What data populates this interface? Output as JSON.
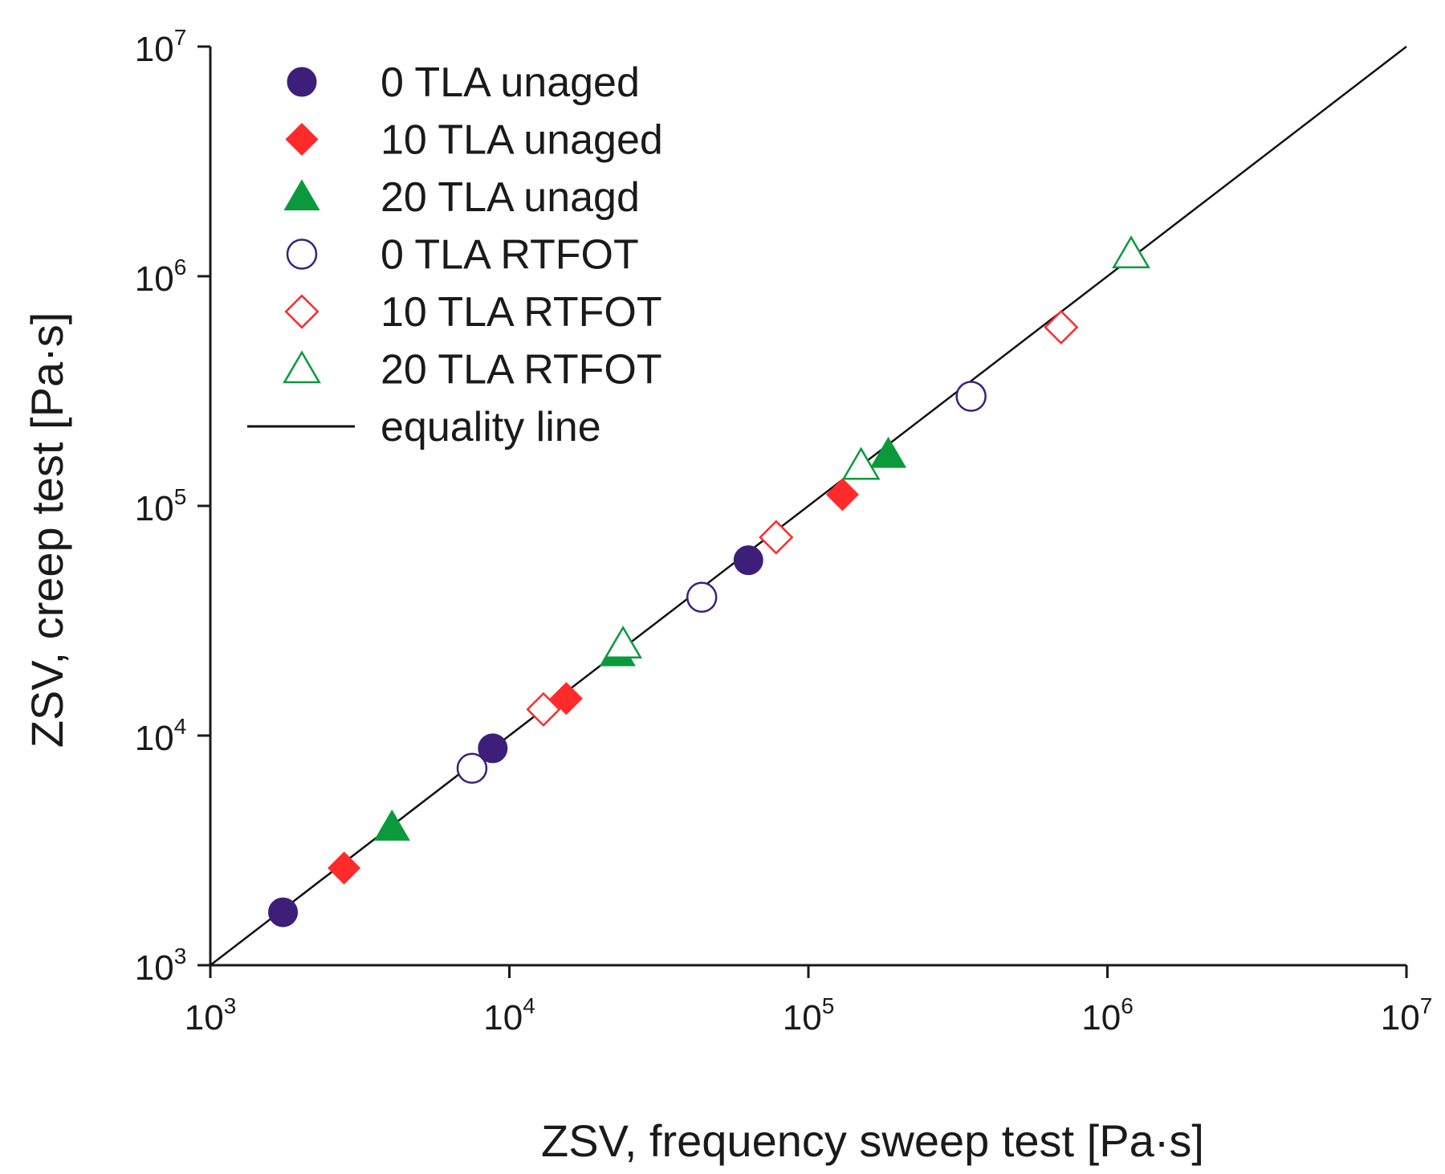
{
  "chart_data": {
    "type": "scatter",
    "title": "",
    "xlabel": "ZSV, frequency sweep test [Pa·s]",
    "ylabel": "ZSV, creep test [Pa·s]",
    "xscale": "log",
    "yscale": "log",
    "xlim": [
      1000,
      10000000
    ],
    "ylim": [
      1000,
      10000000
    ],
    "grid": false,
    "legend_position": "top-left",
    "x_ticks": [
      {
        "base": "10",
        "exp": "3",
        "value": 1000
      },
      {
        "base": "10",
        "exp": "4",
        "value": 10000
      },
      {
        "base": "10",
        "exp": "5",
        "value": 100000
      },
      {
        "base": "10",
        "exp": "6",
        "value": 1000000
      },
      {
        "base": "10",
        "exp": "7",
        "value": 10000000
      }
    ],
    "y_ticks": [
      {
        "base": "10",
        "exp": "3",
        "value": 1000
      },
      {
        "base": "10",
        "exp": "4",
        "value": 10000
      },
      {
        "base": "10",
        "exp": "5",
        "value": 100000
      },
      {
        "base": "10",
        "exp": "6",
        "value": 1000000
      },
      {
        "base": "10",
        "exp": "7",
        "value": 10000000
      }
    ],
    "series": [
      {
        "name": "0 TLA unaged",
        "marker": "circle",
        "filled": true,
        "color": "#3d1f7a",
        "points": [
          [
            1750,
            1700
          ],
          [
            8800,
            8800
          ],
          [
            63000,
            58000
          ]
        ]
      },
      {
        "name": "10 TLA unaged",
        "marker": "diamond",
        "filled": true,
        "color": "#ff2a2a",
        "points": [
          [
            2800,
            2650
          ],
          [
            15500,
            14500
          ],
          [
            130000,
            112000
          ]
        ]
      },
      {
        "name": "20 TLA unagd",
        "marker": "triangle",
        "filled": true,
        "color": "#0a9a3c",
        "points": [
          [
            4050,
            4000
          ],
          [
            23000,
            23000
          ],
          [
            185000,
            168000
          ]
        ]
      },
      {
        "name": "0 TLA RTFOT",
        "marker": "circle",
        "filled": false,
        "color": "#3d1f7a",
        "points": [
          [
            7500,
            7200
          ],
          [
            44000,
            40000
          ],
          [
            350000,
            300000
          ]
        ]
      },
      {
        "name": "10 TLA RTFOT",
        "marker": "diamond",
        "filled": false,
        "color": "#ff2a2a",
        "points": [
          [
            13000,
            13000
          ],
          [
            78000,
            73000
          ],
          [
            700000,
            600000
          ]
        ]
      },
      {
        "name": "20 TLA RTFOT",
        "marker": "triangle",
        "filled": false,
        "color": "#0a9a3c",
        "points": [
          [
            24000,
            25000
          ],
          [
            150000,
            150000
          ],
          [
            1200000,
            1250000
          ]
        ]
      }
    ],
    "equality_line": {
      "name": "equality line",
      "color": "#111111",
      "from": [
        1000,
        1000
      ],
      "to": [
        10000000,
        10000000
      ]
    }
  }
}
